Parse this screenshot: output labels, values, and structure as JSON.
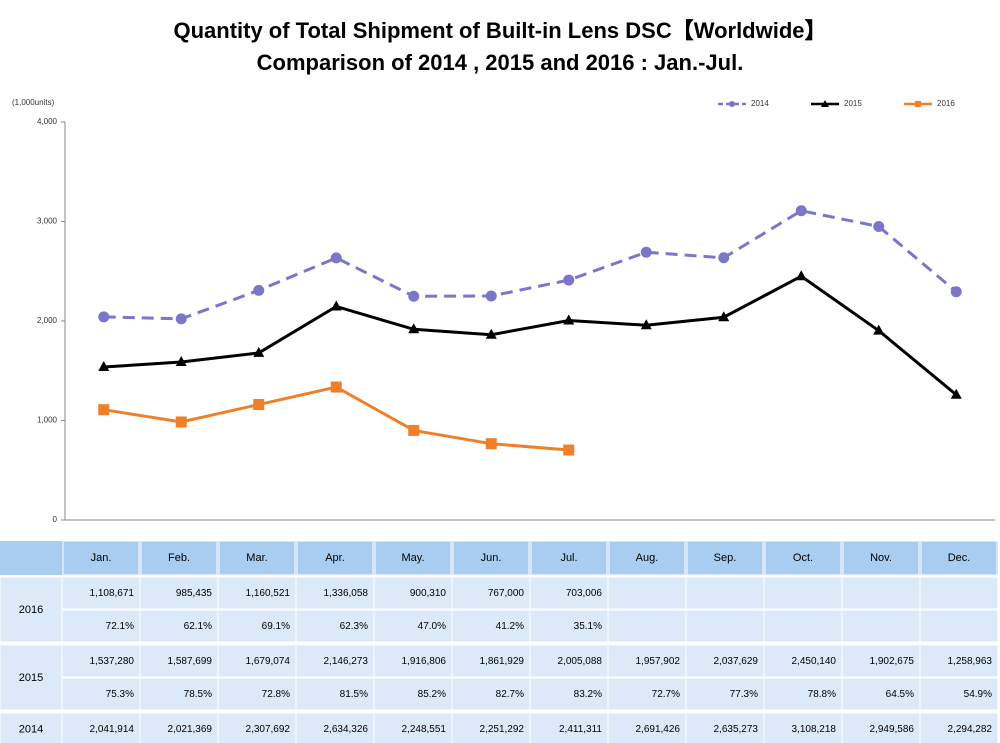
{
  "chart_data": {
    "type": "line",
    "title": "Quantity of Total Shipment of Built-in Lens DSC【Worldwide】",
    "subtitle": "Comparison of 2014 , 2015 and 2016 : Jan.-Jul.",
    "y_label": "(1,000units)",
    "categories": [
      "Jan.",
      "Feb.",
      "Mar.",
      "Apr.",
      "May.",
      "Jun.",
      "Jul.",
      "Aug.",
      "Sep.",
      "Oct.",
      "Nov.",
      "Dec."
    ],
    "ylim": [
      0,
      4000
    ],
    "yticks": [
      0,
      {
        "value": 1000,
        "label": "1,000"
      },
      {
        "value": 2000,
        "label": "2,000"
      },
      {
        "value": 3000,
        "label": "3,000"
      },
      {
        "value": 4000,
        "label": "4,000"
      }
    ],
    "grid": false,
    "legend": "top-right",
    "series": [
      {
        "name": "2014",
        "color": "#7b76c9",
        "dash": true,
        "marker": "circle",
        "values": [
          2041.914,
          2021.369,
          2307.692,
          2634.326,
          2248.551,
          2251.292,
          2411.311,
          2691.426,
          2635.273,
          3108.218,
          2949.586,
          2294.282
        ],
        "value_labels": [
          "2,041,914",
          "2,021,369",
          "2,307,692",
          "2,634,326",
          "2,248,551",
          "2,251,292",
          "2,411,311",
          "2,691,426",
          "2,635,273",
          "3,108,218",
          "2,949,586",
          "2,294,282"
        ]
      },
      {
        "name": "2015",
        "color": "#000000",
        "dash": false,
        "marker": "triangle",
        "values": [
          1537.28,
          1587.699,
          1679.074,
          2146.273,
          1916.806,
          1861.929,
          2005.088,
          1957.902,
          2037.629,
          2450.14,
          1902.675,
          1258.963
        ],
        "value_labels": [
          "1,537,280",
          "1,587,699",
          "1,679,074",
          "2,146,273",
          "1,916,806",
          "1,861,929",
          "2,005,088",
          "1,957,902",
          "2,037,629",
          "2,450,140",
          "1,902,675",
          "1,258,963"
        ],
        "ratio_labels": [
          "75.3%",
          "78.5%",
          "72.8%",
          "81.5%",
          "85.2%",
          "82.7%",
          "83.2%",
          "72.7%",
          "77.3%",
          "78.8%",
          "64.5%",
          "54.9%"
        ]
      },
      {
        "name": "2016",
        "color": "#f07f2a",
        "dash": false,
        "marker": "square",
        "values": [
          1108.671,
          985.435,
          1160.521,
          1336.058,
          900.31,
          767,
          703.006,
          null,
          null,
          null,
          null,
          null
        ],
        "value_labels": [
          "1,108,671",
          "985,435",
          "1,160,521",
          "1,336,058",
          "900,310",
          "767,000",
          "703,006",
          null,
          null,
          null,
          null,
          null
        ],
        "ratio_labels": [
          "72.1%",
          "62.1%",
          "69.1%",
          "62.3%",
          "47.0%",
          "41.2%",
          "35.1%",
          null,
          null,
          null,
          null,
          null
        ]
      }
    ]
  }
}
